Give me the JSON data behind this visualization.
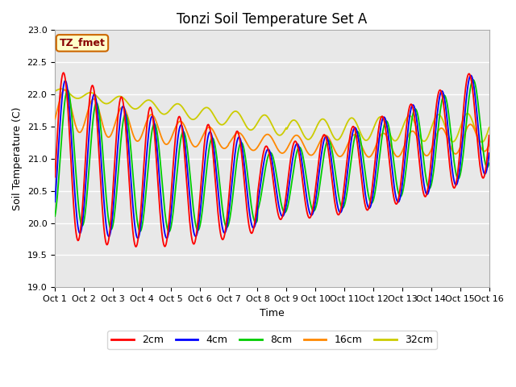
{
  "title": "Tonzi Soil Temperature Set A",
  "xlabel": "Time",
  "ylabel": "Soil Temperature (C)",
  "ylim": [
    19.0,
    23.0
  ],
  "label_annotation": "TZ_fmet",
  "annotation_bbox": {
    "facecolor": "#ffffcc",
    "edgecolor": "#cc6600",
    "boxstyle": "round,pad=0.3"
  },
  "annotation_color": "#880000",
  "line_colors": {
    "2cm": "#ff0000",
    "4cm": "#0000ff",
    "8cm": "#00cc00",
    "16cm": "#ff8800",
    "32cm": "#cccc00"
  },
  "line_width": 1.3,
  "background_color": "#e8e8e8",
  "grid_color": "#ffffff",
  "n_days": 15,
  "samples_per_day": 48,
  "title_fontsize": 12,
  "tick_fontsize": 8,
  "label_fontsize": 9
}
